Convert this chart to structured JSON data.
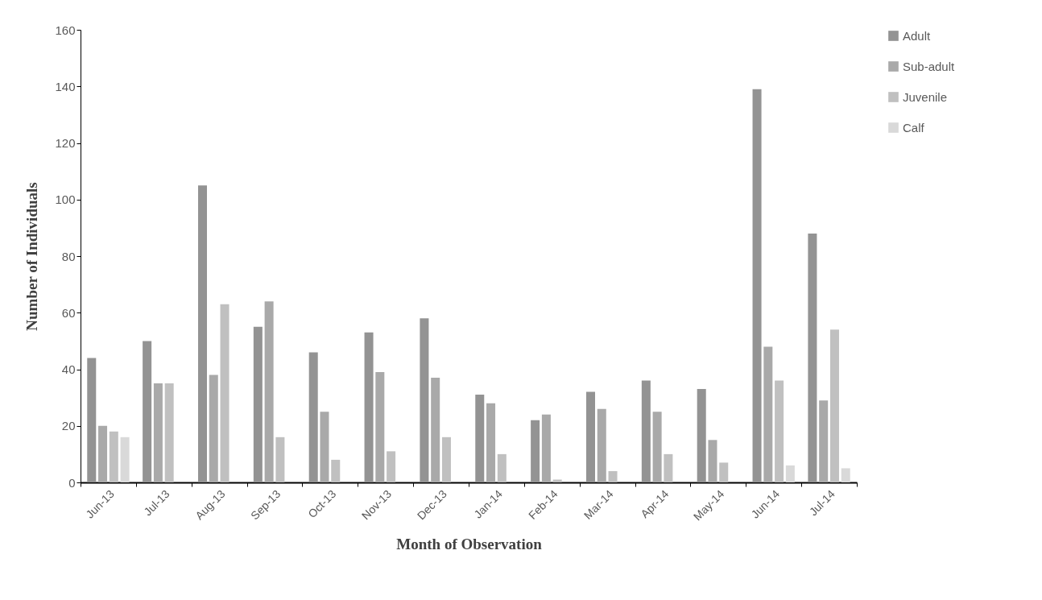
{
  "chart_data": {
    "type": "bar",
    "xlabel": "Month of Observation",
    "ylabel": "Number of Individuals",
    "categories": [
      "Jun-13",
      "Jul-13",
      "Aug-13",
      "Sep-13",
      "Oct-13",
      "Nov-13",
      "Dec-13",
      "Jan-14",
      "Feb-14",
      "Mar-14",
      "Apr-14",
      "May-14",
      "Jun-14",
      "Jul-14"
    ],
    "series": [
      {
        "name": "Adult",
        "color": "#939393",
        "values": [
          44,
          50,
          105,
          55,
          46,
          53,
          58,
          31,
          22,
          32,
          36,
          33,
          139,
          88
        ]
      },
      {
        "name": "Sub-adult",
        "color": "#a9a9a9",
        "values": [
          20,
          35,
          38,
          64,
          25,
          39,
          37,
          28,
          24,
          26,
          25,
          15,
          48,
          29
        ]
      },
      {
        "name": "Juvenile",
        "color": "#c0c0c0",
        "values": [
          18,
          35,
          63,
          16,
          8,
          11,
          16,
          10,
          1,
          4,
          10,
          7,
          36,
          54
        ]
      },
      {
        "name": "Calf",
        "color": "#d9d9d9",
        "values": [
          16,
          0,
          0,
          0,
          0,
          0,
          0,
          0,
          0,
          0,
          0,
          0,
          6,
          5
        ]
      }
    ],
    "ylim": [
      0,
      160
    ],
    "yticks": [
      0,
      20,
      40,
      60,
      80,
      100,
      120,
      140,
      160
    ],
    "grid": false,
    "legend": "right"
  }
}
